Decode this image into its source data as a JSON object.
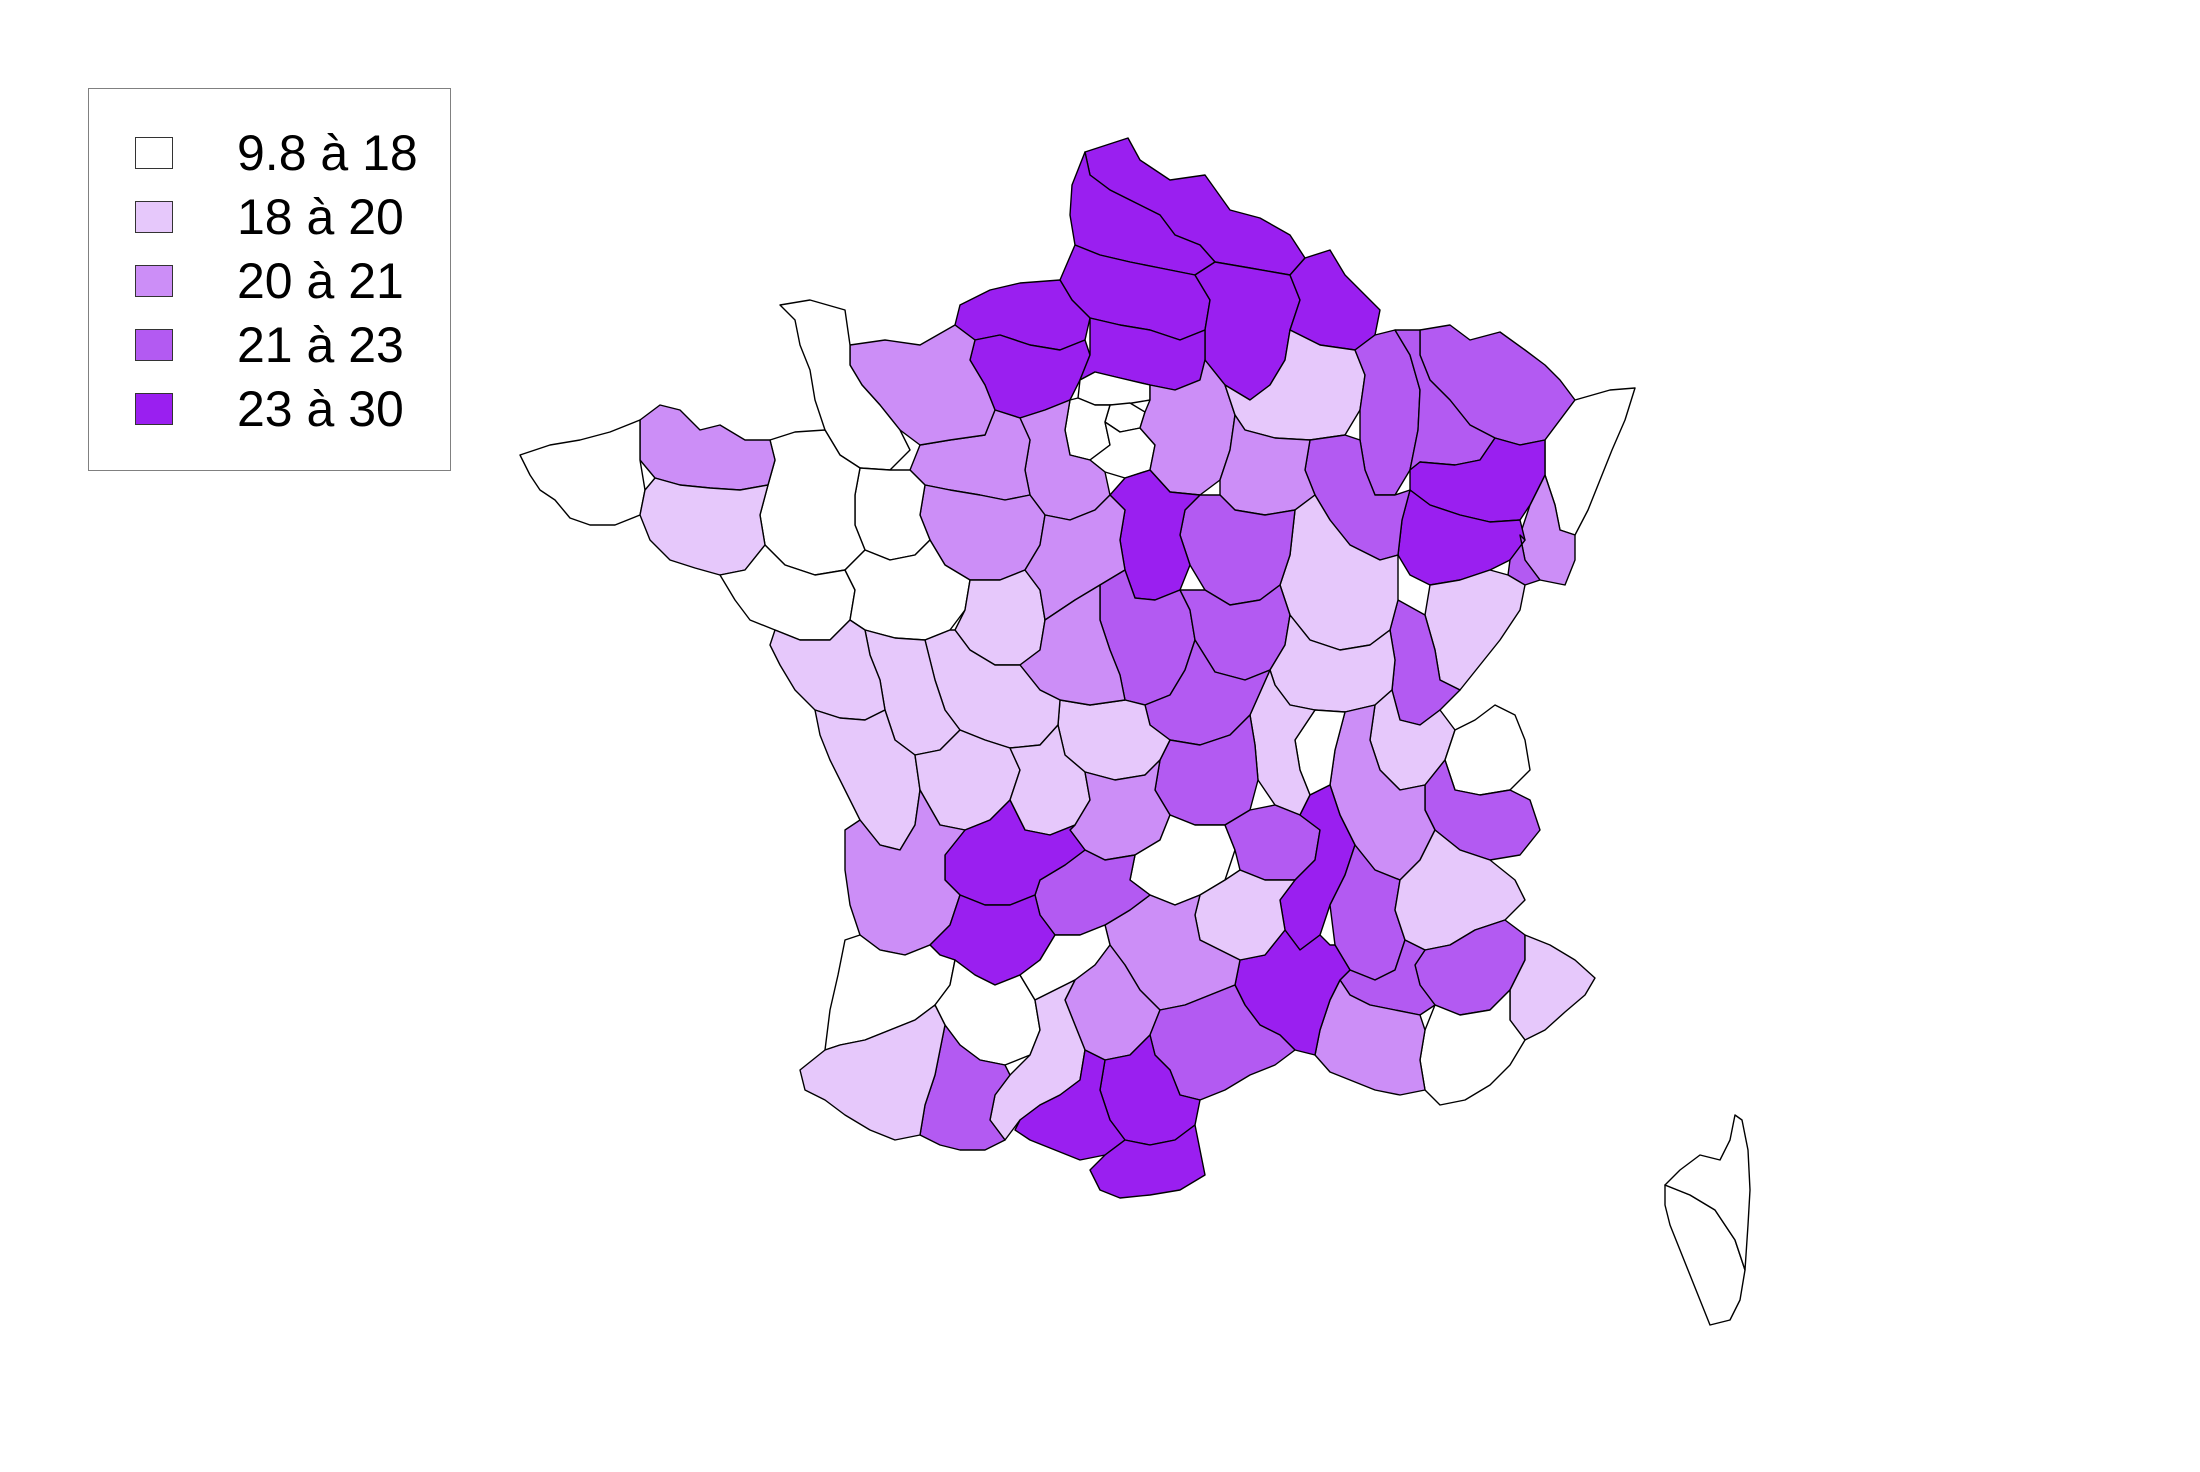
{
  "legend": {
    "classes": [
      {
        "label": "9.8 à 18",
        "color": "#ffffff"
      },
      {
        "label": "18 à 20",
        "color": "#e6c8fb"
      },
      {
        "label": "20 à 21",
        "color": "#cc8ef7"
      },
      {
        "label": "21 à 23",
        "color": "#b35af2"
      },
      {
        "label": "23 à 30",
        "color": "#9a1ff0"
      }
    ]
  },
  "regions": [
    {
      "name": "nord",
      "class": 4
    },
    {
      "name": "pas-de-calais",
      "class": 4
    },
    {
      "name": "somme",
      "class": 4
    },
    {
      "name": "aisne",
      "class": 4
    },
    {
      "name": "ardennes",
      "class": 4
    },
    {
      "name": "seine-maritime",
      "class": 4
    },
    {
      "name": "eure",
      "class": 4
    },
    {
      "name": "oise",
      "class": 4
    },
    {
      "name": "val-d-oise",
      "class": 0
    },
    {
      "name": "paris-petite-couronne",
      "class": 0
    },
    {
      "name": "yvelines",
      "class": 0
    },
    {
      "name": "essonne",
      "class": 0
    },
    {
      "name": "seine-et-marne",
      "class": 2
    },
    {
      "name": "marne",
      "class": 1
    },
    {
      "name": "meuse",
      "class": 3
    },
    {
      "name": "moselle",
      "class": 3
    },
    {
      "name": "meurthe-et-moselle",
      "class": 3
    },
    {
      "name": "bas-rhin",
      "class": 0
    },
    {
      "name": "haut-rhin",
      "class": 2
    },
    {
      "name": "vosges",
      "class": 4
    },
    {
      "name": "haute-saone",
      "class": 4
    },
    {
      "name": "territoire-de-belfort",
      "class": 3
    },
    {
      "name": "doubs",
      "class": 1
    },
    {
      "name": "jura",
      "class": 3
    },
    {
      "name": "haute-marne",
      "class": 3
    },
    {
      "name": "aube",
      "class": 2
    },
    {
      "name": "cote-d-or",
      "class": 1
    },
    {
      "name": "yonne",
      "class": 3
    },
    {
      "name": "loiret",
      "class": 4
    },
    {
      "name": "eure-et-loir",
      "class": 2
    },
    {
      "name": "orne",
      "class": 2
    },
    {
      "name": "calvados",
      "class": 2
    },
    {
      "name": "manche",
      "class": 0
    },
    {
      "name": "sarthe",
      "class": 2
    },
    {
      "name": "mayenne",
      "class": 0
    },
    {
      "name": "ille-et-vilaine",
      "class": 0
    },
    {
      "name": "cotes-d-armor",
      "class": 2
    },
    {
      "name": "finistere",
      "class": 0
    },
    {
      "name": "morbihan",
      "class": 1
    },
    {
      "name": "loire-atlantique",
      "class": 0
    },
    {
      "name": "maine-et-loire",
      "class": 0
    },
    {
      "name": "indre-et-loire",
      "class": 1
    },
    {
      "name": "loir-et-cher",
      "class": 2
    },
    {
      "name": "cher",
      "class": 3
    },
    {
      "name": "nievre",
      "class": 3
    },
    {
      "name": "saone-et-loire",
      "class": 1
    },
    {
      "name": "ain",
      "class": 1
    },
    {
      "name": "haute-savoie",
      "class": 0
    },
    {
      "name": "savoie",
      "class": 3
    },
    {
      "name": "isere",
      "class": 2
    },
    {
      "name": "rhone",
      "class": 0
    },
    {
      "name": "loire",
      "class": 1
    },
    {
      "name": "allier",
      "class": 3
    },
    {
      "name": "puy-de-dome",
      "class": 3
    },
    {
      "name": "creuse",
      "class": 1
    },
    {
      "name": "indre",
      "class": 2
    },
    {
      "name": "vienne",
      "class": 1
    },
    {
      "name": "deux-sevres",
      "class": 1
    },
    {
      "name": "vendee",
      "class": 1
    },
    {
      "name": "charente-maritime",
      "class": 1
    },
    {
      "name": "charente",
      "class": 1
    },
    {
      "name": "haute-vienne",
      "class": 1
    },
    {
      "name": "correze",
      "class": 2
    },
    {
      "name": "cantal",
      "class": 0
    },
    {
      "name": "haute-loire",
      "class": 3
    },
    {
      "name": "ardeche",
      "class": 4
    },
    {
      "name": "drome",
      "class": 3
    },
    {
      "name": "hautes-alpes",
      "class": 1
    },
    {
      "name": "alpes-de-haute-provence",
      "class": 3
    },
    {
      "name": "alpes-maritimes",
      "class": 1
    },
    {
      "name": "var",
      "class": 0
    },
    {
      "name": "vaucluse",
      "class": 3
    },
    {
      "name": "bouches-du-rhone",
      "class": 2
    },
    {
      "name": "gard",
      "class": 4
    },
    {
      "name": "lozere",
      "class": 1
    },
    {
      "name": "aveyron",
      "class": 2
    },
    {
      "name": "lot",
      "class": 3
    },
    {
      "name": "dordogne",
      "class": 4
    },
    {
      "name": "gironde",
      "class": 2
    },
    {
      "name": "lot-et-garonne",
      "class": 4
    },
    {
      "name": "landes",
      "class": 0
    },
    {
      "name": "gers",
      "class": 0
    },
    {
      "name": "tarn-et-garonne",
      "class": 0
    },
    {
      "name": "tarn",
      "class": 2
    },
    {
      "name": "herault",
      "class": 3
    },
    {
      "name": "haute-garonne",
      "class": 1
    },
    {
      "name": "aude",
      "class": 4
    },
    {
      "name": "ariege",
      "class": 4
    },
    {
      "name": "pyrenees-orientales",
      "class": 4
    },
    {
      "name": "hautes-pyrenees",
      "class": 3
    },
    {
      "name": "pyrenees-atlantiques",
      "class": 1
    },
    {
      "name": "corse-du-sud",
      "class": 0
    },
    {
      "name": "haute-corse",
      "class": 0
    }
  ]
}
